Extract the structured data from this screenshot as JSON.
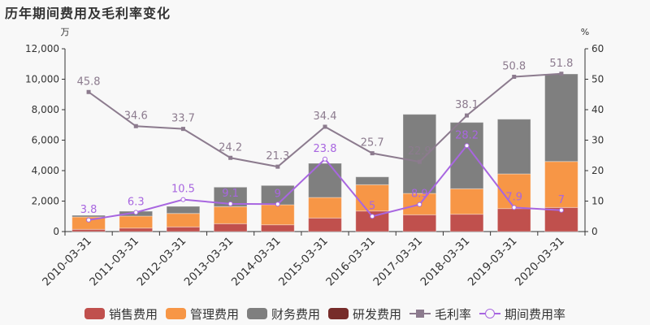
{
  "title": "历年期间费用及毛利率变化",
  "chart_data": {
    "type": "bar+line",
    "title": "历年期间费用及毛利率变化",
    "left_unit": "万",
    "right_unit": "%",
    "categories": [
      "2010-03-31",
      "2011-03-31",
      "2012-03-31",
      "2013-03-31",
      "2014-03-31",
      "2015-03-31",
      "2016-03-31",
      "2017-03-31",
      "2018-03-31",
      "2019-03-31",
      "2020-03-31"
    ],
    "ylim_left": [
      0,
      12000
    ],
    "yticks_left": [
      0,
      2000,
      4000,
      6000,
      8000,
      10000,
      12000
    ],
    "ytick_labels_left": [
      "0",
      "2,000",
      "4,000",
      "6,000",
      "8,000",
      "10,000",
      "12,000"
    ],
    "ylim_right": [
      0,
      60
    ],
    "yticks_right": [
      0,
      10,
      20,
      30,
      40,
      50,
      60
    ],
    "series": [
      {
        "name": "销售费用",
        "type": "bar",
        "stack": true,
        "color": "#c0504d",
        "values": [
          145,
          230,
          305,
          515,
          445,
          890,
          1350,
          1100,
          1140,
          1510,
          1580
        ]
      },
      {
        "name": "管理费用",
        "type": "bar",
        "stack": true,
        "color": "#f79646",
        "values": [
          815,
          785,
          885,
          1120,
          1315,
          1350,
          1725,
          1405,
          1670,
          2275,
          3020
        ]
      },
      {
        "name": "财务费用",
        "type": "bar",
        "stack": true,
        "color": "#7f7f7f",
        "values": [
          105,
          320,
          465,
          1280,
          1265,
          2240,
          515,
          5190,
          4355,
          3590,
          5745
        ]
      },
      {
        "name": "研发费用",
        "type": "bar",
        "stack": true,
        "color": "#772c2a",
        "values": [
          0,
          0,
          0,
          0,
          0,
          0,
          0,
          0,
          0,
          0,
          0
        ]
      },
      {
        "name": "毛利率",
        "type": "line",
        "axis": "right",
        "color": "#8c7b8e",
        "marker": "square",
        "values": [
          45.8,
          34.6,
          33.7,
          24.2,
          21.3,
          34.4,
          25.7,
          22.9,
          38.1,
          50.8,
          51.8
        ]
      },
      {
        "name": "期间费用率",
        "type": "line",
        "axis": "right",
        "color": "#a866e0",
        "marker": "circle",
        "values": [
          3.8,
          6.3,
          10.5,
          9.1,
          9,
          23.8,
          5,
          8.9,
          28.2,
          7.9,
          7
        ]
      }
    ],
    "legend_position": "bottom",
    "grid": false
  },
  "legend": [
    {
      "label": "销售费用",
      "kind": "bar",
      "color": "#c0504d"
    },
    {
      "label": "管理费用",
      "kind": "bar",
      "color": "#f79646"
    },
    {
      "label": "财务费用",
      "kind": "bar",
      "color": "#7f7f7f"
    },
    {
      "label": "研发费用",
      "kind": "bar",
      "color": "#772c2a"
    },
    {
      "label": "毛利率",
      "kind": "line-square",
      "color": "#8c7b8e"
    },
    {
      "label": "期间费用率",
      "kind": "line-circle",
      "color": "#a866e0"
    }
  ]
}
